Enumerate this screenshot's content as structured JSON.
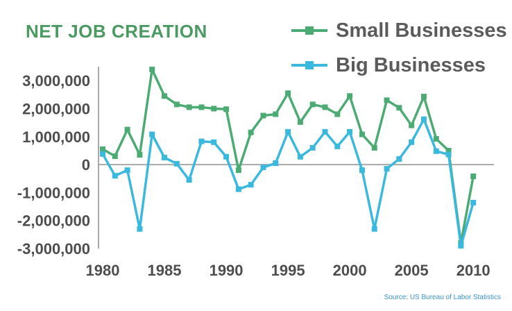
{
  "chart_data": {
    "type": "line",
    "title": "NET JOB CREATION",
    "xlabel": "",
    "ylabel": "",
    "xlim": [
      1980,
      2011
    ],
    "ylim": [
      -3000000,
      3500000
    ],
    "x_ticks": [
      "1980",
      "1985",
      "1990",
      "1995",
      "2000",
      "2005",
      "2010"
    ],
    "y_ticks": [
      "3,000,000",
      "2,000,000",
      "1,000,000",
      "0",
      "-1,000,000",
      "-2,000,000",
      "-3,000,000"
    ],
    "x": [
      1980,
      1981,
      1982,
      1983,
      1984,
      1985,
      1986,
      1987,
      1988,
      1989,
      1990,
      1991,
      1992,
      1993,
      1994,
      1995,
      1996,
      1997,
      1998,
      1999,
      2000,
      2001,
      2002,
      2003,
      2004,
      2005,
      2006,
      2007,
      2008,
      2009,
      2010
    ],
    "series": [
      {
        "name": "Small Businesses",
        "color": "#4cab72",
        "values": [
          550000,
          300000,
          1250000,
          350000,
          3400000,
          2450000,
          2150000,
          2050000,
          2050000,
          2000000,
          1980000,
          -200000,
          1150000,
          1750000,
          1800000,
          2550000,
          1520000,
          2150000,
          2050000,
          1800000,
          2450000,
          1080000,
          600000,
          2300000,
          2030000,
          1400000,
          2430000,
          920000,
          500000,
          -2800000,
          -420000
        ]
      },
      {
        "name": "Big Businesses",
        "color": "#3bb8de",
        "values": [
          380000,
          -400000,
          -200000,
          -2300000,
          1080000,
          250000,
          30000,
          -550000,
          830000,
          800000,
          280000,
          -880000,
          -720000,
          -100000,
          50000,
          1170000,
          280000,
          600000,
          1170000,
          650000,
          1170000,
          -200000,
          -2300000,
          -150000,
          200000,
          800000,
          1620000,
          480000,
          360000,
          -2900000,
          -1360000
        ]
      }
    ],
    "grid": false,
    "legend_position": "top-right",
    "annotations": [
      "Source: US Bureau of Labor Statistics"
    ]
  }
}
